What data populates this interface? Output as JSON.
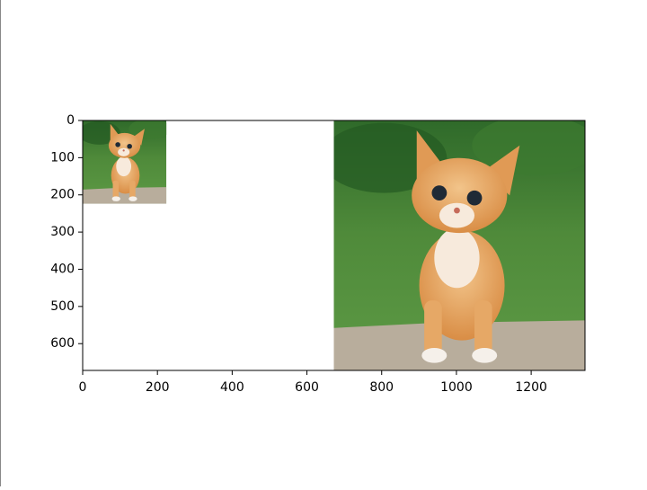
{
  "chart_data": {
    "type": "image",
    "xlim": [
      0,
      1344
    ],
    "ylim": [
      672,
      0
    ],
    "xticks": [
      0,
      200,
      400,
      600,
      800,
      1000,
      1200
    ],
    "yticks": [
      0,
      100,
      200,
      300,
      400,
      500,
      600
    ],
    "images": [
      {
        "extent": [
          0,
          224,
          224,
          0
        ]
      },
      {
        "extent": [
          672,
          1344,
          672,
          0
        ]
      }
    ]
  }
}
